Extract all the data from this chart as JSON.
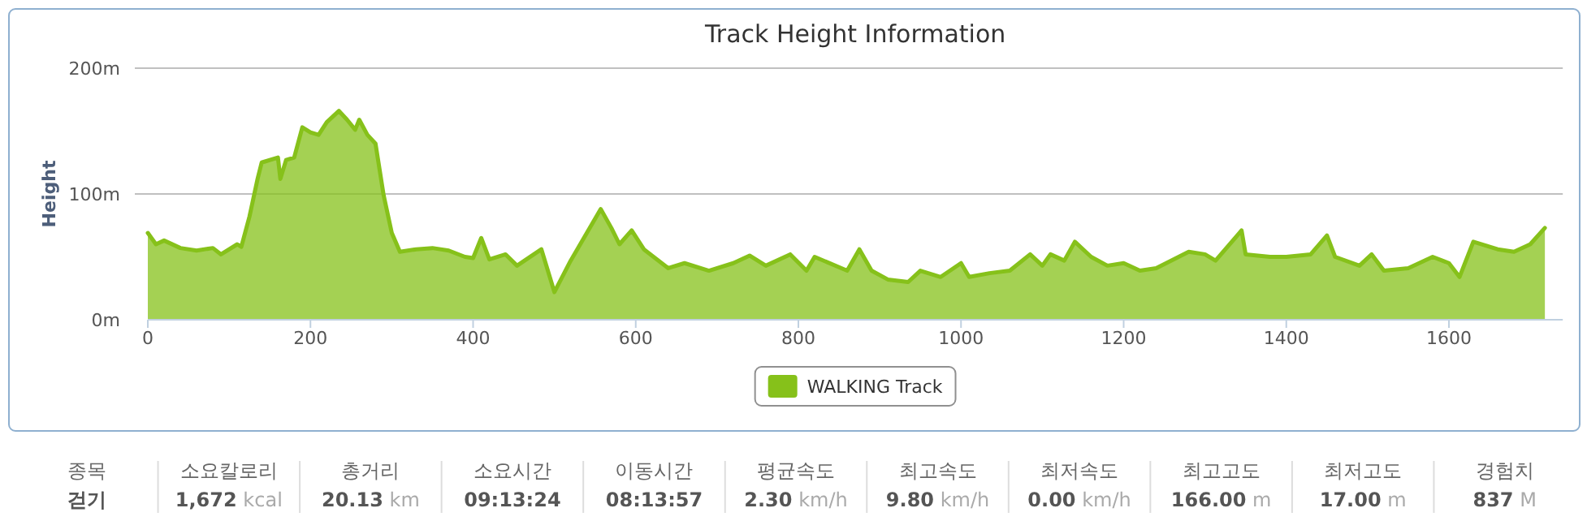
{
  "chart_data": [
    {
      "type": "area",
      "title": "Track Height Information",
      "ylabel": "Height",
      "xlim": [
        0,
        1740
      ],
      "xticks": [
        0,
        200,
        400,
        600,
        800,
        1000,
        1200,
        1400,
        1600
      ],
      "ylim": [
        0,
        200
      ],
      "yticks": [
        {
          "value": 0,
          "label": "0m"
        },
        {
          "value": 100,
          "label": "100m"
        },
        {
          "value": 200,
          "label": "200m"
        }
      ],
      "grid": "y",
      "legend": "bottom",
      "marker": "none",
      "series": [
        {
          "name": "WALKING Track",
          "color": "#86c11a",
          "x": [
            0,
            10,
            20,
            40,
            60,
            80,
            90,
            110,
            115,
            125,
            135,
            140,
            160,
            163,
            170,
            180,
            190,
            200,
            210,
            220,
            235,
            245,
            255,
            260,
            270,
            280,
            290,
            300,
            310,
            330,
            350,
            370,
            390,
            400,
            410,
            420,
            440,
            454,
            484,
            500,
            520,
            557,
            570,
            580,
            595,
            610,
            640,
            660,
            690,
            720,
            740,
            760,
            790,
            810,
            820,
            860,
            875,
            890,
            910,
            935,
            950,
            975,
            1000,
            1010,
            1035,
            1060,
            1085,
            1100,
            1110,
            1127,
            1140,
            1160,
            1180,
            1200,
            1220,
            1240,
            1280,
            1300,
            1313,
            1345,
            1350,
            1380,
            1400,
            1430,
            1450,
            1460,
            1490,
            1505,
            1520,
            1550,
            1580,
            1600,
            1613,
            1630,
            1660,
            1680,
            1700,
            1718
          ],
          "values": [
            69,
            60,
            63,
            57,
            55,
            57,
            52,
            60,
            58,
            82,
            112,
            125,
            129,
            112,
            127,
            129,
            153,
            149,
            147,
            157,
            166,
            159,
            151,
            159,
            147,
            140,
            99,
            69,
            54,
            56,
            57,
            55,
            50,
            49,
            65,
            48,
            52,
            43,
            56,
            22,
            47,
            88,
            73,
            60,
            71,
            56,
            41,
            45,
            39,
            45,
            51,
            43,
            52,
            39,
            50,
            39,
            56,
            39,
            32,
            30,
            39,
            34,
            45,
            34,
            37,
            39,
            52,
            43,
            52,
            47,
            62,
            50,
            43,
            45,
            39,
            41,
            54,
            52,
            47,
            71,
            52,
            50,
            50,
            52,
            67,
            50,
            43,
            52,
            39,
            41,
            50,
            45,
            34,
            62,
            56,
            54,
            60,
            73
          ]
        }
      ]
    },
    {
      "type": "other",
      "categories": [
        "종목",
        "소요칼로리",
        "총거리",
        "소요시간",
        "이동시간",
        "평균속도",
        "최고속도",
        "최저속도",
        "최고고도",
        "최저고도",
        "경험치"
      ],
      "value_labels": [
        "걷기",
        "**1,672** kcal",
        "**20.13** km",
        "09:13:24",
        "08:13:57",
        "**2.30** km/h",
        "**9.80** km/h",
        "**0.00** km/h",
        "**166.00** m",
        "**17.00** m",
        "**837** M"
      ]
    }
  ]
}
